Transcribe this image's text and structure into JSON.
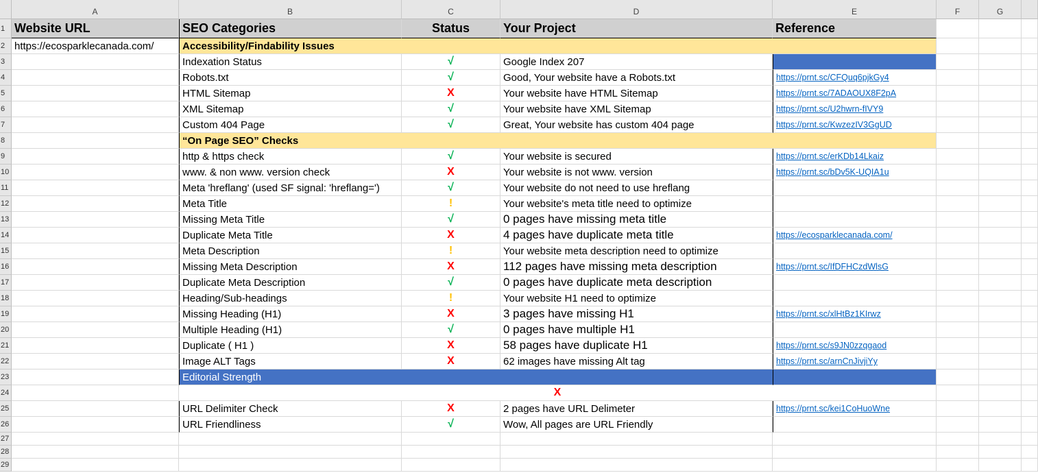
{
  "columns": [
    "A",
    "B",
    "C",
    "D",
    "E",
    "F",
    "G"
  ],
  "header": {
    "a": "Website URL",
    "b": "SEO Categories",
    "c": "Status",
    "d": "Your Project",
    "e": "Reference"
  },
  "website_url": "https://ecosparklecanada.com/",
  "colors": {
    "ok": "#00b050",
    "bad": "#ff0000",
    "warn": "#ffc000",
    "section": "#ffe699",
    "blue": "#4472c4"
  },
  "rows": [
    {
      "type": "section",
      "label": "Accessibility/Findability Issues"
    },
    {
      "category": "Indexation Status",
      "status": "ok",
      "project": "Google Index 207",
      "ref": "",
      "refBlue": true
    },
    {
      "category": "Robots.txt",
      "status": "ok",
      "project": "Good, Your website have a Robots.txt",
      "ref": "https://prnt.sc/CFQuq6pjkGy4"
    },
    {
      "category": "HTML Sitemap",
      "status": "bad",
      "project": "Your website have HTML Sitemap",
      "ref": "https://prnt.sc/7ADAOUX8F2pA"
    },
    {
      "category": "XML Sitemap",
      "status": "ok",
      "project": "Your website have XML Sitemap",
      "ref": "https://prnt.sc/U2hwrn-fIVY9"
    },
    {
      "category": "Custom 404 Page",
      "status": "ok",
      "project": "Great, Your website has custom 404 page",
      "ref": "https://prnt.sc/KwzezIV3GgUD"
    },
    {
      "type": "section",
      "label": "“On Page  SEO” Checks"
    },
    {
      "category": "http & https check",
      "status": "ok",
      "project": "Your website is secured",
      "ref": "https://prnt.sc/erKDb14Lkaiz"
    },
    {
      "category": "www. & non www. version check",
      "status": "bad",
      "project": "Your website is not www. version",
      "ref": "https://prnt.sc/bDv5K-UQIA1u"
    },
    {
      "category": "Meta 'hreflang' (used SF signal: 'hreflang=')",
      "status": "ok",
      "project": "Your website do not need to use hreflang",
      "ref": ""
    },
    {
      "category": "Meta Title",
      "status": "warn",
      "project": "Your website's meta title need to optimize",
      "ref": ""
    },
    {
      "category": "Missing Meta Title",
      "status": "ok",
      "project": "0 pages have missing meta title",
      "ref": "",
      "big": true
    },
    {
      "category": "Duplicate Meta Title",
      "status": "bad",
      "project": "4 pages have duplicate meta title",
      "ref": "https://ecosparklecanada.com/",
      "big": true
    },
    {
      "category": "Meta Description",
      "status": "warn",
      "project": "Your website meta description need to optimize",
      "ref": ""
    },
    {
      "category": "Missing Meta Description",
      "status": "bad",
      "project": "112 pages have missing meta description",
      "ref": "https://prnt.sc/IfDFHCzdWlsG",
      "big": true
    },
    {
      "category": "Duplicate Meta Description",
      "status": "ok",
      "project": "0 pages have duplicate meta description",
      "ref": "",
      "big": true
    },
    {
      "category": "Heading/Sub-headings",
      "status": "warn",
      "project": "Your website H1 need to optimize",
      "ref": ""
    },
    {
      "category": "Missing Heading (H1)",
      "status": "bad",
      "project": "3 pages have missing H1",
      "ref": "https://prnt.sc/xlHtBz1KIrwz",
      "big": true
    },
    {
      "category": "Multiple Heading (H1)",
      "status": "ok",
      "project": "0 pages have multiple H1",
      "ref": "",
      "big": true
    },
    {
      "category": "Duplicate ( H1 )",
      "status": "bad",
      "project": "58 pages have duplicate H1",
      "ref": "https://prnt.sc/s9JN0zzqgaod",
      "big": true
    },
    {
      "category": "Image ALT Tags",
      "status": "bad",
      "project": "62 images have missing Alt tag",
      "ref": "https://prnt.sc/arnCnJivjiYy"
    },
    {
      "type": "blue",
      "label": "Editorial Strength"
    },
    {
      "type": "merged",
      "status": "bad"
    },
    {
      "category": "URL Delimiter Check",
      "status": "bad",
      "project": "2 pages have URL Delimeter",
      "ref": "https://prnt.sc/kei1CoHuoWne"
    },
    {
      "category": "URL Friendliness",
      "status": "ok",
      "project": "Wow, All pages are URL Friendly",
      "ref": ""
    }
  ],
  "status_glyphs": {
    "ok": "√",
    "bad": "X",
    "warn": "!"
  }
}
